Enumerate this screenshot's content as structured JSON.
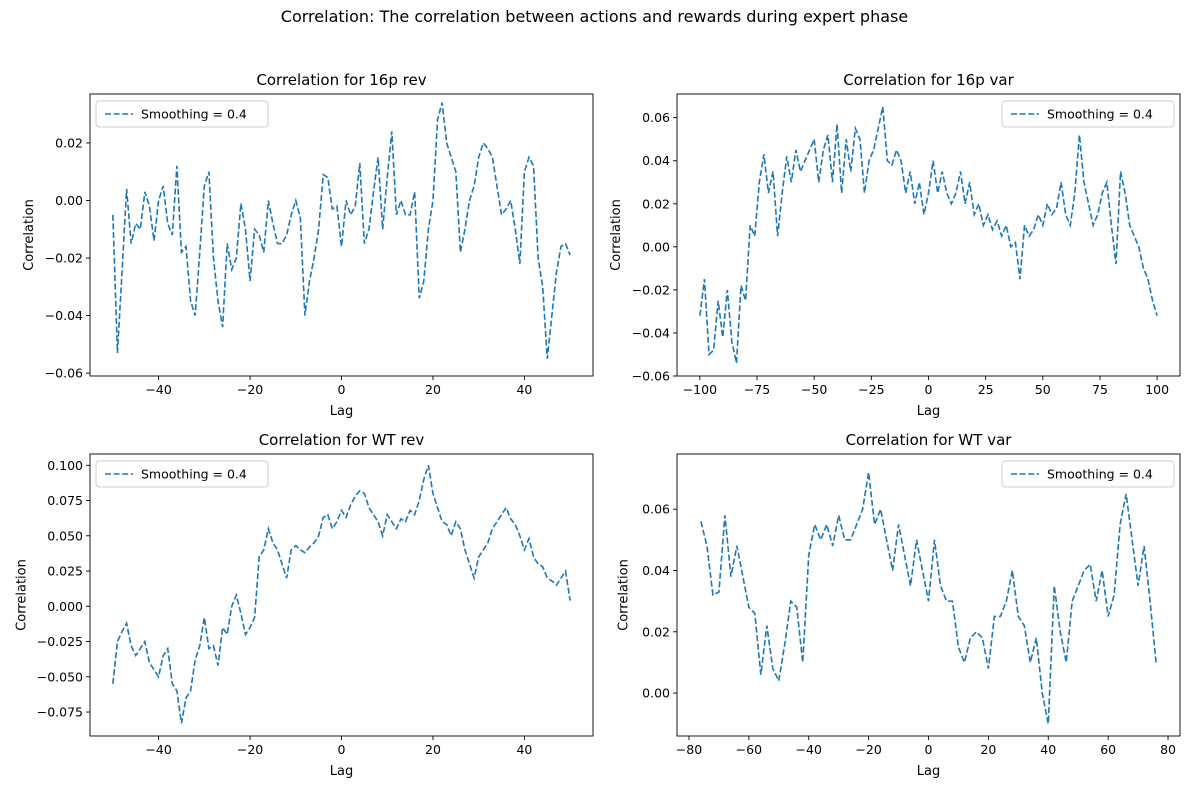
{
  "figure": {
    "suptitle": "Correlation: The correlation between actions and rewards during expert phase"
  },
  "chart_data": [
    {
      "type": "line",
      "title": "Correlation for 16p rev",
      "xlabel": "Lag",
      "ylabel": "Correlation",
      "xlim": [
        -55,
        55
      ],
      "ylim": [
        -0.061,
        0.037
      ],
      "xticks": [
        -40,
        -20,
        0,
        20,
        40
      ],
      "yticks": [
        -0.06,
        -0.04,
        -0.02,
        0.0,
        0.02
      ],
      "xtick_labels": [
        "−40",
        "−20",
        "0",
        "20",
        "40"
      ],
      "ytick_labels": [
        "−0.06",
        "−0.04",
        "−0.02",
        "0.00",
        "0.02"
      ],
      "legend": {
        "position": "upper-left",
        "entries": [
          "Smoothing = 0.4"
        ]
      },
      "color": "#1f77b4",
      "line_style": "dashed",
      "grid": false,
      "series": [
        {
          "name": "Smoothing = 0.4",
          "x": [
            -50,
            -49,
            -48,
            -47,
            -46,
            -45,
            -44,
            -43,
            -42,
            -41,
            -40,
            -39,
            -38,
            -37,
            -36,
            -35,
            -34,
            -33,
            -32,
            -31,
            -30,
            -29,
            -28,
            -27,
            -26,
            -25,
            -24,
            -23,
            -22,
            -21,
            -20,
            -19,
            -18,
            -17,
            -16,
            -15,
            -14,
            -13,
            -12,
            -11,
            -10,
            -9,
            -8,
            -7,
            -6,
            -5,
            -4,
            -3,
            -2,
            -1,
            0,
            1,
            2,
            3,
            4,
            5,
            6,
            7,
            8,
            9,
            10,
            11,
            12,
            13,
            14,
            15,
            16,
            17,
            18,
            19,
            20,
            21,
            22,
            23,
            24,
            25,
            26,
            27,
            28,
            29,
            30,
            31,
            32,
            33,
            34,
            35,
            36,
            37,
            38,
            39,
            40,
            41,
            42,
            43,
            44,
            45,
            46,
            47,
            48,
            49,
            50
          ],
          "values": [
            -0.005,
            -0.053,
            -0.025,
            0.004,
            -0.015,
            -0.008,
            -0.01,
            0.003,
            -0.002,
            -0.014,
            0.0,
            0.005,
            -0.008,
            -0.012,
            0.012,
            -0.018,
            -0.016,
            -0.035,
            -0.04,
            -0.018,
            0.005,
            0.01,
            -0.02,
            -0.035,
            -0.044,
            -0.015,
            -0.024,
            -0.02,
            -0.001,
            -0.01,
            -0.028,
            -0.01,
            -0.012,
            -0.018,
            0.0,
            -0.008,
            -0.015,
            -0.015,
            -0.012,
            -0.005,
            0.0,
            -0.006,
            -0.04,
            -0.028,
            -0.02,
            -0.01,
            0.009,
            0.008,
            -0.003,
            -0.002,
            -0.016,
            0.0,
            -0.005,
            -0.002,
            0.013,
            -0.015,
            -0.01,
            0.003,
            0.015,
            -0.01,
            0.008,
            0.024,
            -0.005,
            0.0,
            -0.005,
            -0.005,
            0.003,
            -0.034,
            -0.028,
            -0.01,
            0.0,
            0.028,
            0.034,
            0.02,
            0.015,
            0.01,
            -0.018,
            -0.01,
            0.0,
            0.005,
            0.015,
            0.02,
            0.018,
            0.015,
            0.005,
            -0.005,
            -0.003,
            0.0,
            -0.01,
            -0.022,
            0.01,
            0.015,
            0.012,
            -0.02,
            -0.03,
            -0.055,
            -0.04,
            -0.025,
            -0.016,
            -0.015,
            -0.019
          ]
        }
      ]
    },
    {
      "type": "line",
      "title": "Correlation for 16p var",
      "xlabel": "Lag",
      "ylabel": "Correlation",
      "xlim": [
        -110,
        110
      ],
      "ylim": [
        -0.06,
        0.071
      ],
      "xticks": [
        -100,
        -75,
        -50,
        -25,
        0,
        25,
        50,
        75,
        100
      ],
      "yticks": [
        -0.06,
        -0.04,
        -0.02,
        0.0,
        0.02,
        0.04,
        0.06
      ],
      "xtick_labels": [
        "−100",
        "−75",
        "−50",
        "−25",
        "0",
        "25",
        "50",
        "75",
        "100"
      ],
      "ytick_labels": [
        "−0.06",
        "−0.04",
        "−0.02",
        "0.00",
        "0.02",
        "0.04",
        "0.06"
      ],
      "legend": {
        "position": "upper-right",
        "entries": [
          "Smoothing = 0.4"
        ]
      },
      "color": "#1f77b4",
      "line_style": "dashed",
      "grid": false,
      "series": [
        {
          "name": "Smoothing = 0.4",
          "x": [
            -100,
            -98,
            -96,
            -94,
            -92,
            -90,
            -88,
            -86,
            -84,
            -82,
            -80,
            -78,
            -76,
            -74,
            -72,
            -70,
            -68,
            -66,
            -64,
            -62,
            -60,
            -58,
            -56,
            -54,
            -52,
            -50,
            -48,
            -46,
            -44,
            -42,
            -40,
            -38,
            -36,
            -34,
            -32,
            -30,
            -28,
            -26,
            -24,
            -22,
            -20,
            -18,
            -16,
            -14,
            -12,
            -10,
            -8,
            -6,
            -4,
            -2,
            0,
            2,
            4,
            6,
            8,
            10,
            12,
            14,
            16,
            18,
            20,
            22,
            24,
            26,
            28,
            30,
            32,
            34,
            36,
            38,
            40,
            42,
            44,
            46,
            48,
            50,
            52,
            54,
            56,
            58,
            60,
            62,
            64,
            66,
            68,
            70,
            72,
            74,
            76,
            78,
            80,
            82,
            84,
            86,
            88,
            90,
            92,
            94,
            96,
            98,
            100
          ],
          "values": [
            -0.032,
            -0.015,
            -0.05,
            -0.048,
            -0.025,
            -0.042,
            -0.02,
            -0.044,
            -0.054,
            -0.018,
            -0.025,
            0.01,
            0.005,
            0.03,
            0.043,
            0.025,
            0.035,
            0.005,
            0.025,
            0.042,
            0.03,
            0.045,
            0.035,
            0.04,
            0.045,
            0.05,
            0.03,
            0.045,
            0.052,
            0.03,
            0.057,
            0.025,
            0.05,
            0.035,
            0.055,
            0.05,
            0.025,
            0.04,
            0.045,
            0.055,
            0.065,
            0.04,
            0.038,
            0.045,
            0.04,
            0.025,
            0.035,
            0.02,
            0.03,
            0.015,
            0.025,
            0.04,
            0.025,
            0.035,
            0.025,
            0.02,
            0.025,
            0.035,
            0.02,
            0.03,
            0.015,
            0.02,
            0.01,
            0.015,
            0.008,
            0.012,
            0.005,
            0.01,
            0.0,
            0.002,
            -0.015,
            0.01,
            0.005,
            0.008,
            0.015,
            0.01,
            0.02,
            0.015,
            0.018,
            0.03,
            0.015,
            0.01,
            0.025,
            0.052,
            0.03,
            0.02,
            0.01,
            0.015,
            0.025,
            0.03,
            0.01,
            -0.008,
            0.035,
            0.025,
            0.01,
            0.005,
            0.0,
            -0.01,
            -0.015,
            -0.025,
            -0.032
          ]
        }
      ]
    },
    {
      "type": "line",
      "title": "Correlation for WT rev",
      "xlabel": "Lag",
      "ylabel": "Correlation",
      "xlim": [
        -55,
        55
      ],
      "ylim": [
        -0.092,
        0.108
      ],
      "xticks": [
        -40,
        -20,
        0,
        20,
        40
      ],
      "yticks": [
        -0.075,
        -0.05,
        -0.025,
        0.0,
        0.025,
        0.05,
        0.075,
        0.1
      ],
      "xtick_labels": [
        "−40",
        "−20",
        "0",
        "20",
        "40"
      ],
      "ytick_labels": [
        "−0.075",
        "−0.050",
        "−0.025",
        "0.000",
        "0.025",
        "0.050",
        "0.075",
        "0.100"
      ],
      "legend": {
        "position": "upper-left",
        "entries": [
          "Smoothing = 0.4"
        ]
      },
      "color": "#1f77b4",
      "line_style": "dashed",
      "grid": false,
      "series": [
        {
          "name": "Smoothing = 0.4",
          "x": [
            -50,
            -49,
            -48,
            -47,
            -46,
            -45,
            -44,
            -43,
            -42,
            -41,
            -40,
            -39,
            -38,
            -37,
            -36,
            -35,
            -34,
            -33,
            -32,
            -31,
            -30,
            -29,
            -28,
            -27,
            -26,
            -25,
            -24,
            -23,
            -22,
            -21,
            -20,
            -19,
            -18,
            -17,
            -16,
            -15,
            -14,
            -13,
            -12,
            -11,
            -10,
            -9,
            -8,
            -7,
            -6,
            -5,
            -4,
            -3,
            -2,
            -1,
            0,
            1,
            2,
            3,
            4,
            5,
            6,
            7,
            8,
            9,
            10,
            11,
            12,
            13,
            14,
            15,
            16,
            17,
            18,
            19,
            20,
            21,
            22,
            23,
            24,
            25,
            26,
            27,
            28,
            29,
            30,
            31,
            32,
            33,
            34,
            35,
            36,
            37,
            38,
            39,
            40,
            41,
            42,
            43,
            44,
            45,
            46,
            47,
            48,
            49,
            50
          ],
          "values": [
            -0.055,
            -0.025,
            -0.018,
            -0.012,
            -0.028,
            -0.035,
            -0.03,
            -0.025,
            -0.04,
            -0.045,
            -0.05,
            -0.035,
            -0.03,
            -0.055,
            -0.06,
            -0.083,
            -0.065,
            -0.06,
            -0.038,
            -0.028,
            -0.008,
            -0.03,
            -0.028,
            -0.042,
            -0.015,
            -0.02,
            0.0,
            0.008,
            -0.005,
            -0.02,
            -0.015,
            -0.008,
            0.035,
            0.04,
            0.055,
            0.045,
            0.04,
            0.03,
            0.02,
            0.04,
            0.043,
            0.04,
            0.038,
            0.042,
            0.045,
            0.05,
            0.063,
            0.065,
            0.055,
            0.06,
            0.068,
            0.063,
            0.072,
            0.078,
            0.082,
            0.08,
            0.07,
            0.065,
            0.06,
            0.05,
            0.065,
            0.06,
            0.055,
            0.062,
            0.06,
            0.068,
            0.065,
            0.075,
            0.09,
            0.1,
            0.08,
            0.07,
            0.06,
            0.058,
            0.05,
            0.06,
            0.055,
            0.04,
            0.03,
            0.02,
            0.035,
            0.04,
            0.045,
            0.055,
            0.06,
            0.065,
            0.07,
            0.062,
            0.058,
            0.05,
            0.04,
            0.048,
            0.035,
            0.03,
            0.028,
            0.02,
            0.018,
            0.015,
            0.02,
            0.025,
            0.004
          ]
        }
      ]
    },
    {
      "type": "line",
      "title": "Correlation for WT var",
      "xlabel": "Lag",
      "ylabel": "Correlation",
      "xlim": [
        -84,
        84
      ],
      "ylim": [
        -0.014,
        0.078
      ],
      "xticks": [
        -80,
        -60,
        -40,
        -20,
        0,
        20,
        40,
        60,
        80
      ],
      "yticks": [
        0.0,
        0.02,
        0.04,
        0.06
      ],
      "xtick_labels": [
        "−80",
        "−60",
        "−40",
        "−20",
        "0",
        "20",
        "40",
        "60",
        "80"
      ],
      "ytick_labels": [
        "0.00",
        "0.02",
        "0.04",
        "0.06"
      ],
      "legend": {
        "position": "upper-right",
        "entries": [
          "Smoothing = 0.4"
        ]
      },
      "color": "#1f77b4",
      "line_style": "dashed",
      "grid": false,
      "series": [
        {
          "name": "Smoothing = 0.4",
          "x": [
            -76,
            -74,
            -72,
            -70,
            -68,
            -66,
            -64,
            -62,
            -60,
            -58,
            -56,
            -54,
            -52,
            -50,
            -48,
            -46,
            -44,
            -42,
            -40,
            -38,
            -36,
            -34,
            -32,
            -30,
            -28,
            -26,
            -24,
            -22,
            -20,
            -18,
            -16,
            -14,
            -12,
            -10,
            -8,
            -6,
            -4,
            -2,
            0,
            2,
            4,
            6,
            8,
            10,
            12,
            14,
            16,
            18,
            20,
            22,
            24,
            26,
            28,
            30,
            32,
            34,
            36,
            38,
            40,
            42,
            44,
            46,
            48,
            50,
            52,
            54,
            56,
            58,
            60,
            62,
            64,
            66,
            68,
            70,
            72,
            74,
            76
          ],
          "values": [
            0.056,
            0.048,
            0.032,
            0.033,
            0.058,
            0.038,
            0.048,
            0.038,
            0.028,
            0.026,
            0.006,
            0.022,
            0.008,
            0.004,
            0.016,
            0.03,
            0.028,
            0.01,
            0.045,
            0.055,
            0.05,
            0.055,
            0.048,
            0.058,
            0.05,
            0.05,
            0.055,
            0.06,
            0.072,
            0.055,
            0.06,
            0.05,
            0.04,
            0.055,
            0.045,
            0.035,
            0.05,
            0.04,
            0.03,
            0.05,
            0.035,
            0.03,
            0.03,
            0.015,
            0.01,
            0.018,
            0.02,
            0.018,
            0.008,
            0.025,
            0.025,
            0.03,
            0.04,
            0.025,
            0.022,
            0.01,
            0.018,
            0.0,
            -0.01,
            0.035,
            0.02,
            0.01,
            0.03,
            0.035,
            0.04,
            0.042,
            0.03,
            0.04,
            0.025,
            0.032,
            0.055,
            0.065,
            0.05,
            0.035,
            0.048,
            0.03,
            0.01
          ]
        }
      ]
    }
  ]
}
